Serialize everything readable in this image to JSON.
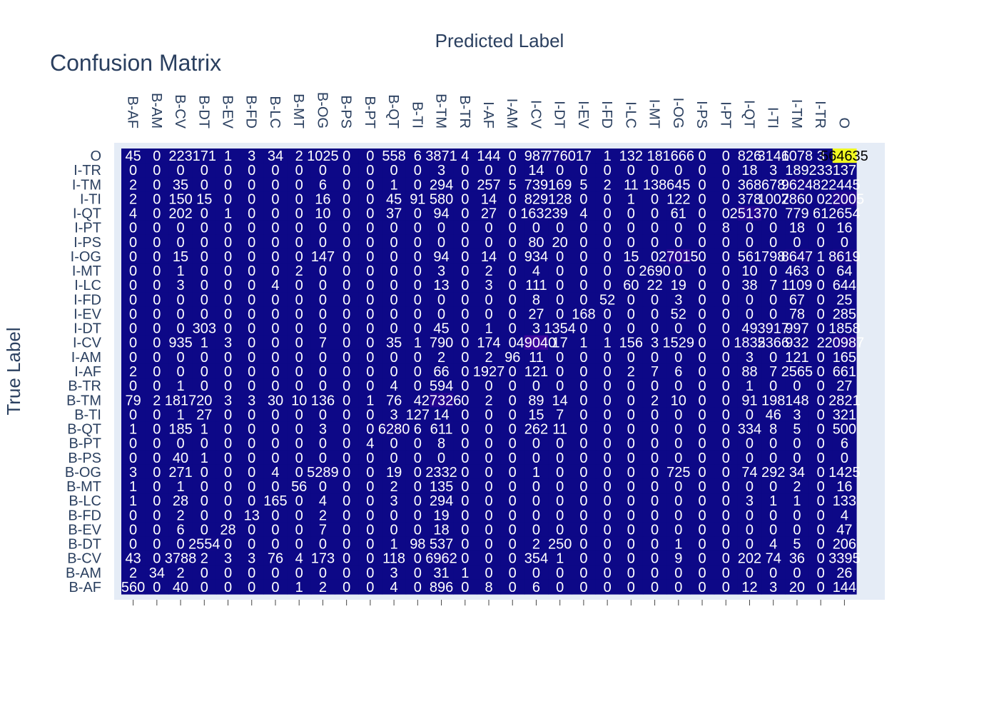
{
  "chart_data": {
    "type": "heatmap",
    "title": "Confusion Matrix",
    "xlabel": "Predicted Label",
    "ylabel": "True Label",
    "x": [
      "B-AF",
      "B-AM",
      "B-CV",
      "B-DT",
      "B-EV",
      "B-FD",
      "B-LC",
      "B-MT",
      "B-OG",
      "B-PS",
      "B-PT",
      "B-QT",
      "B-TI",
      "B-TM",
      "B-TR",
      "I-AF",
      "I-AM",
      "I-CV",
      "I-DT",
      "I-EV",
      "I-FD",
      "I-LC",
      "I-MT",
      "I-OG",
      "I-PS",
      "I-PT",
      "I-QT",
      "I-TI",
      "I-TM",
      "I-TR",
      "O"
    ],
    "y": [
      "O",
      "I-TR",
      "I-TM",
      "I-TI",
      "I-QT",
      "I-PT",
      "I-PS",
      "I-OG",
      "I-MT",
      "I-LC",
      "I-FD",
      "I-EV",
      "I-DT",
      "I-CV",
      "I-AM",
      "I-AF",
      "B-TR",
      "B-TM",
      "B-TI",
      "B-QT",
      "B-PT",
      "B-PS",
      "B-OG",
      "B-MT",
      "B-LC",
      "B-FD",
      "B-EV",
      "B-DT",
      "B-CV",
      "B-AM",
      "B-AF"
    ],
    "z": [
      [
        45,
        0,
        223,
        171,
        1,
        3,
        34,
        2,
        1025,
        0,
        0,
        558,
        6,
        3871,
        4,
        144,
        0,
        987,
        7760,
        17,
        1,
        132,
        18,
        1666,
        0,
        0,
        826,
        3146,
        1078,
        3,
        564635
      ],
      [
        0,
        0,
        0,
        0,
        0,
        0,
        0,
        0,
        0,
        0,
        0,
        0,
        0,
        3,
        0,
        0,
        0,
        14,
        0,
        0,
        0,
        0,
        0,
        0,
        0,
        0,
        18,
        3,
        189,
        233,
        137
      ],
      [
        2,
        0,
        35,
        0,
        0,
        0,
        0,
        0,
        6,
        0,
        0,
        1,
        0,
        294,
        0,
        257,
        5,
        739,
        169,
        5,
        2,
        11,
        138,
        645,
        0,
        0,
        368,
        678,
        9624,
        82,
        2445
      ],
      [
        2,
        0,
        150,
        15,
        0,
        0,
        0,
        0,
        16,
        0,
        0,
        45,
        91,
        580,
        0,
        14,
        0,
        829,
        128,
        0,
        0,
        1,
        0,
        122,
        0,
        0,
        378,
        1007,
        2860,
        0,
        22005
      ],
      [
        4,
        0,
        202,
        0,
        1,
        0,
        0,
        0,
        10,
        0,
        0,
        37,
        0,
        94,
        0,
        27,
        0,
        1632,
        39,
        4,
        0,
        0,
        0,
        61,
        0,
        0,
        25137,
        0,
        779,
        61,
        2654
      ],
      [
        0,
        0,
        0,
        0,
        0,
        0,
        0,
        0,
        0,
        0,
        0,
        0,
        0,
        0,
        0,
        0,
        0,
        0,
        0,
        0,
        0,
        0,
        0,
        0,
        0,
        8,
        0,
        0,
        18,
        0,
        16
      ],
      [
        0,
        0,
        0,
        0,
        0,
        0,
        0,
        0,
        0,
        0,
        0,
        0,
        0,
        0,
        0,
        0,
        0,
        80,
        20,
        0,
        0,
        0,
        0,
        0,
        0,
        0,
        0,
        0,
        0,
        0,
        0
      ],
      [
        0,
        0,
        15,
        0,
        0,
        0,
        0,
        0,
        147,
        0,
        0,
        0,
        0,
        94,
        0,
        14,
        0,
        934,
        0,
        0,
        0,
        15,
        0,
        27015,
        0,
        0,
        561,
        798,
        8647,
        1,
        8619
      ],
      [
        0,
        0,
        1,
        0,
        0,
        0,
        0,
        2,
        0,
        0,
        0,
        0,
        0,
        3,
        0,
        2,
        0,
        4,
        0,
        0,
        0,
        0,
        2690,
        0,
        0,
        0,
        10,
        0,
        463,
        0,
        64
      ],
      [
        0,
        0,
        3,
        0,
        0,
        0,
        4,
        0,
        0,
        0,
        0,
        0,
        0,
        13,
        0,
        3,
        0,
        111,
        0,
        0,
        0,
        60,
        22,
        19,
        0,
        0,
        38,
        7,
        1109,
        0,
        644
      ],
      [
        0,
        0,
        0,
        0,
        0,
        0,
        0,
        0,
        0,
        0,
        0,
        0,
        0,
        0,
        0,
        0,
        0,
        8,
        0,
        0,
        52,
        0,
        0,
        3,
        0,
        0,
        0,
        0,
        67,
        0,
        25
      ],
      [
        0,
        0,
        0,
        0,
        0,
        0,
        0,
        0,
        0,
        0,
        0,
        0,
        0,
        0,
        0,
        0,
        0,
        27,
        0,
        168,
        0,
        0,
        0,
        52,
        0,
        0,
        0,
        0,
        78,
        0,
        285
      ],
      [
        0,
        0,
        0,
        303,
        0,
        0,
        0,
        0,
        0,
        0,
        0,
        0,
        0,
        45,
        0,
        1,
        0,
        3,
        1354,
        0,
        0,
        0,
        0,
        0,
        0,
        0,
        49,
        3917,
        997,
        0,
        1858
      ],
      [
        0,
        0,
        935,
        1,
        3,
        0,
        0,
        0,
        7,
        0,
        0,
        35,
        1,
        790,
        0,
        174,
        0,
        49040,
        17,
        1,
        1,
        156,
        3,
        1529,
        0,
        0,
        1835,
        2366,
        932,
        2,
        20987
      ],
      [
        0,
        0,
        0,
        0,
        0,
        0,
        0,
        0,
        0,
        0,
        0,
        0,
        0,
        2,
        0,
        2,
        96,
        11,
        0,
        0,
        0,
        0,
        0,
        0,
        0,
        0,
        3,
        0,
        121,
        0,
        165
      ],
      [
        2,
        0,
        0,
        0,
        0,
        0,
        0,
        0,
        0,
        0,
        0,
        0,
        0,
        66,
        0,
        1927,
        0,
        121,
        0,
        0,
        0,
        2,
        7,
        6,
        0,
        0,
        88,
        7,
        2565,
        0,
        661
      ],
      [
        0,
        0,
        1,
        0,
        0,
        0,
        0,
        0,
        0,
        0,
        0,
        4,
        0,
        594,
        0,
        0,
        0,
        0,
        0,
        0,
        0,
        0,
        0,
        0,
        0,
        0,
        1,
        0,
        0,
        0,
        27
      ],
      [
        79,
        2,
        1817,
        20,
        3,
        3,
        30,
        10,
        136,
        0,
        1,
        76,
        4,
        27326,
        0,
        2,
        0,
        89,
        14,
        0,
        0,
        0,
        2,
        10,
        0,
        0,
        91,
        198,
        148,
        0,
        2821
      ],
      [
        0,
        0,
        1,
        27,
        0,
        0,
        0,
        0,
        0,
        0,
        0,
        3,
        127,
        14,
        0,
        0,
        0,
        15,
        7,
        0,
        0,
        0,
        0,
        0,
        0,
        0,
        0,
        46,
        3,
        0,
        321
      ],
      [
        1,
        0,
        185,
        1,
        0,
        0,
        0,
        0,
        3,
        0,
        0,
        6280,
        6,
        611,
        0,
        0,
        0,
        262,
        11,
        0,
        0,
        0,
        0,
        0,
        0,
        0,
        334,
        8,
        5,
        0,
        500
      ],
      [
        0,
        0,
        0,
        0,
        0,
        0,
        0,
        0,
        0,
        0,
        4,
        0,
        0,
        8,
        0,
        0,
        0,
        0,
        0,
        0,
        0,
        0,
        0,
        0,
        0,
        0,
        0,
        0,
        0,
        0,
        6
      ],
      [
        0,
        0,
        40,
        1,
        0,
        0,
        0,
        0,
        0,
        0,
        0,
        0,
        0,
        0,
        0,
        0,
        0,
        0,
        0,
        0,
        0,
        0,
        0,
        0,
        0,
        0,
        0,
        0,
        0,
        0,
        0
      ],
      [
        3,
        0,
        271,
        0,
        0,
        0,
        4,
        0,
        5289,
        0,
        0,
        19,
        0,
        2332,
        0,
        0,
        0,
        1,
        0,
        0,
        0,
        0,
        0,
        725,
        0,
        0,
        74,
        292,
        34,
        0,
        1425
      ],
      [
        1,
        0,
        1,
        0,
        0,
        0,
        0,
        56,
        0,
        0,
        0,
        2,
        0,
        135,
        0,
        0,
        0,
        0,
        0,
        0,
        0,
        0,
        0,
        0,
        0,
        0,
        0,
        0,
        2,
        0,
        16
      ],
      [
        1,
        0,
        28,
        0,
        0,
        0,
        165,
        0,
        4,
        0,
        0,
        3,
        0,
        294,
        0,
        0,
        0,
        0,
        0,
        0,
        0,
        0,
        0,
        0,
        0,
        0,
        3,
        1,
        1,
        0,
        133
      ],
      [
        0,
        0,
        2,
        0,
        0,
        13,
        0,
        0,
        2,
        0,
        0,
        0,
        0,
        19,
        0,
        0,
        0,
        0,
        0,
        0,
        0,
        0,
        0,
        0,
        0,
        0,
        0,
        0,
        0,
        0,
        4
      ],
      [
        0,
        0,
        6,
        0,
        28,
        0,
        0,
        0,
        7,
        0,
        0,
        0,
        0,
        18,
        0,
        0,
        0,
        0,
        0,
        0,
        0,
        0,
        0,
        0,
        0,
        0,
        0,
        0,
        0,
        0,
        47
      ],
      [
        0,
        0,
        0,
        2554,
        0,
        0,
        0,
        0,
        0,
        0,
        0,
        1,
        98,
        537,
        0,
        0,
        0,
        2,
        250,
        0,
        0,
        0,
        0,
        1,
        0,
        0,
        0,
        4,
        5,
        0,
        206
      ],
      [
        43,
        0,
        3788,
        2,
        3,
        3,
        76,
        4,
        173,
        0,
        0,
        118,
        0,
        6962,
        0,
        0,
        0,
        354,
        1,
        0,
        0,
        0,
        0,
        9,
        0,
        0,
        202,
        74,
        36,
        0,
        3395
      ],
      [
        2,
        34,
        2,
        0,
        0,
        0,
        0,
        0,
        0,
        0,
        0,
        3,
        0,
        31,
        1,
        0,
        0,
        0,
        0,
        0,
        0,
        0,
        0,
        0,
        0,
        0,
        0,
        0,
        0,
        0,
        26
      ],
      [
        560,
        0,
        40,
        0,
        0,
        0,
        0,
        1,
        2,
        0,
        0,
        4,
        0,
        896,
        0,
        8,
        0,
        6,
        0,
        0,
        0,
        0,
        0,
        0,
        0,
        0,
        12,
        3,
        20,
        0,
        144
      ]
    ],
    "zmin": 0,
    "zmax": 564635,
    "colorscale": [
      "#0d0887",
      "#46039f",
      "#7201a8",
      "#9c179e",
      "#bd3786",
      "#d8576b",
      "#ed7953",
      "#fb9f3a",
      "#fdca26",
      "#f0f921"
    ],
    "plot_bg": "#e5ecf6",
    "text_color_light": "#ffffff",
    "text_color_dark": "#000000"
  }
}
